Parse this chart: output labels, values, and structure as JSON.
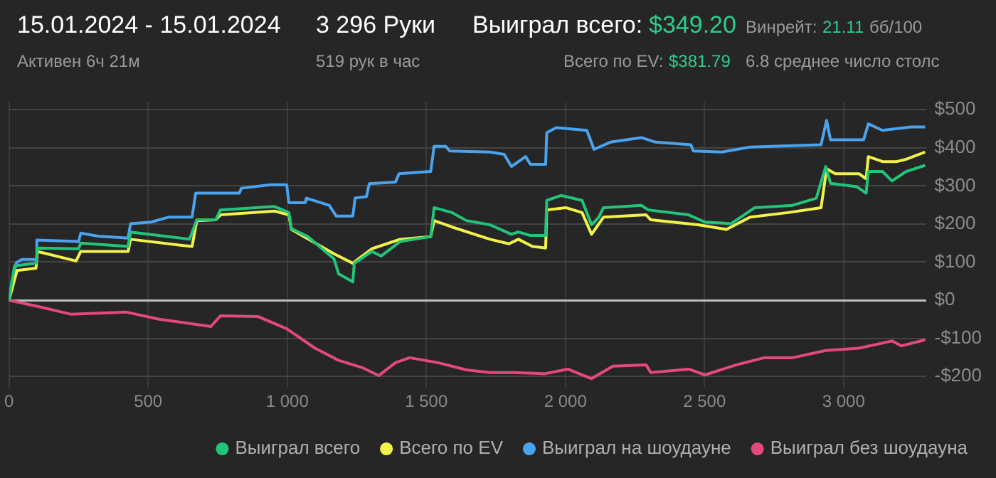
{
  "chart_data": {
    "type": "line",
    "annotations": [
      "15.01.2024 - 15.01.2024",
      "Активен 6ч 21м",
      "3 296 Руки",
      "519 рук в час",
      "Выиграл всего:",
      "$349.20",
      "Всего по EV:",
      "$381.79",
      "Винрейт:",
      "21.11",
      "бб/100",
      "6.8 среднее число столс"
    ],
    "xlim": [
      0,
      3296
    ],
    "xticks": [
      0,
      500,
      {
        "value": 1000,
        "label": "1 000"
      },
      {
        "value": 1500,
        "label": "1 500"
      },
      {
        "value": 2000,
        "label": "2 000"
      },
      {
        "value": 2500,
        "label": "2 500"
      },
      {
        "value": 3000,
        "label": "3 000"
      }
    ],
    "ylim": [
      -230,
      520
    ],
    "yticks": [
      {
        "value": -200,
        "label": "-$200"
      },
      {
        "value": -100,
        "label": "-$100"
      },
      {
        "value": 0,
        "label": "$0"
      },
      {
        "value": 100,
        "label": "$100"
      },
      {
        "value": 200,
        "label": "$200"
      },
      {
        "value": 300,
        "label": "$300"
      },
      {
        "value": 400,
        "label": "$400"
      },
      {
        "value": 500,
        "label": "$500"
      }
    ],
    "grid": true,
    "legend": "bottom right",
    "marker": "none",
    "line_style": "solid",
    "series": [
      {
        "name": "Выиграл всего",
        "color": "#22c47a",
        "x": [
          0,
          8,
          20,
          97,
          102,
          250,
          258,
          428,
          437,
          649,
          675,
          743,
          760,
          955,
          1006,
          1015,
          1074,
          1168,
          1185,
          1236,
          1241,
          1304,
          1338,
          1406,
          1516,
          1528,
          1593,
          1644,
          1729,
          1806,
          1831,
          1874,
          1929,
          1933,
          1984,
          2060,
          2094,
          2120,
          2137,
          2273,
          2298,
          2443,
          2502,
          2596,
          2681,
          2817,
          2902,
          2936,
          2953,
          3047,
          3081,
          3089,
          3140,
          3174,
          3225,
          3293
        ],
        "values": [
          0,
          40,
          90,
          97,
          137,
          135,
          150,
          141,
          179,
          160,
          211,
          211,
          237,
          246,
          230,
          188,
          167,
          109,
          69,
          48,
          97,
          128,
          116,
          154,
          167,
          243,
          230,
          209,
          198,
          173,
          179,
          170,
          170,
          262,
          275,
          262,
          198,
          218,
          243,
          249,
          237,
          224,
          205,
          201,
          243,
          249,
          268,
          351,
          307,
          298,
          281,
          338,
          338,
          313,
          338,
          354
        ]
      },
      {
        "name": "Всего по EV",
        "color": "#f2f24a",
        "x": [
          0,
          12,
          29,
          97,
          102,
          241,
          258,
          428,
          437,
          658,
          675,
          743,
          760,
          955,
          1006,
          1015,
          1168,
          1236,
          1304,
          1406,
          1516,
          1528,
          1593,
          1729,
          1797,
          1831,
          1882,
          1929,
          1933,
          2001,
          2060,
          2094,
          2137,
          2290,
          2307,
          2477,
          2579,
          2664,
          2800,
          2919,
          2939,
          2970,
          3055,
          3081,
          3089,
          3140,
          3191,
          3225,
          3293
        ],
        "values": [
          0,
          33,
          78,
          84,
          128,
          103,
          128,
          128,
          160,
          141,
          209,
          211,
          224,
          234,
          224,
          186,
          122,
          97,
          135,
          160,
          167,
          209,
          192,
          160,
          148,
          160,
          141,
          137,
          237,
          243,
          230,
          173,
          218,
          224,
          211,
          198,
          186,
          218,
          230,
          243,
          345,
          332,
          332,
          319,
          377,
          364,
          364,
          370,
          389
        ]
      },
      {
        "name": "Выиграл на шоудауне",
        "color": "#4aa3ee",
        "x": [
          0,
          12,
          26,
          46,
          97,
          100,
          250,
          258,
          320,
          428,
          437,
          510,
          573,
          658,
          671,
          740,
          828,
          835,
          939,
          998,
          1006,
          1065,
          1069,
          1151,
          1176,
          1236,
          1244,
          1285,
          1295,
          1389,
          1402,
          1516,
          1528,
          1570,
          1584,
          1729,
          1780,
          1806,
          1857,
          1874,
          1929,
          1933,
          1967,
          2077,
          2103,
          2162,
          2273,
          2324,
          2451,
          2460,
          2562,
          2664,
          2919,
          2939,
          2953,
          3072,
          3089,
          3140,
          3242,
          3293
        ],
        "values": [
          0,
          46,
          98,
          107,
          107,
          158,
          154,
          176,
          168,
          163,
          201,
          205,
          218,
          218,
          281,
          281,
          281,
          294,
          303,
          303,
          256,
          256,
          268,
          249,
          221,
          221,
          268,
          272,
          306,
          310,
          332,
          338,
          404,
          404,
          392,
          389,
          383,
          351,
          377,
          357,
          357,
          440,
          453,
          446,
          396,
          415,
          427,
          415,
          408,
          392,
          389,
          402,
          408,
          472,
          421,
          421,
          463,
          446,
          455,
          455
        ]
      },
      {
        "name": "Выиграл без шоудауна",
        "color": "#e5487e",
        "x": [
          0,
          114,
          224,
          420,
          539,
          726,
          760,
          896,
          998,
          1100,
          1185,
          1270,
          1329,
          1389,
          1440,
          1542,
          1644,
          1729,
          1814,
          1925,
          2009,
          2094,
          2171,
          2290,
          2307,
          2443,
          2502,
          2613,
          2715,
          2817,
          2936,
          3055,
          3174,
          3208,
          3293
        ],
        "values": [
          0,
          -18,
          -37,
          -31,
          -50,
          -69,
          -41,
          -43,
          -75,
          -126,
          -158,
          -177,
          -198,
          -164,
          -151,
          -164,
          -183,
          -190,
          -190,
          -193,
          -181,
          -206,
          -173,
          -170,
          -190,
          -181,
          -196,
          -170,
          -151,
          -151,
          -132,
          -126,
          -107,
          -120,
          -104
        ]
      }
    ]
  }
}
